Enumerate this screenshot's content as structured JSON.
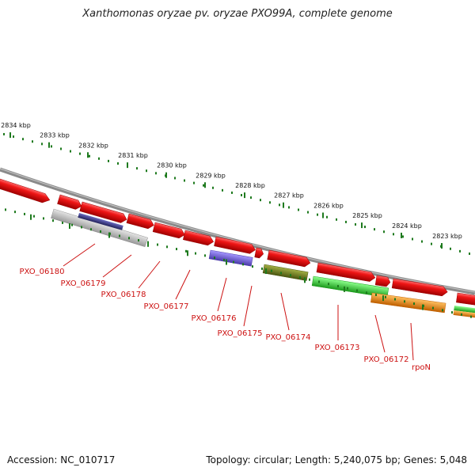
{
  "title": "Xanthomonas oryzae pv. oryzae PXO99A, complete genome",
  "footer": {
    "accession": "Accession: NC_010717",
    "summary": "Topology: circular; Length: 5,240,075 bp; Genes: 5,048"
  },
  "ruler": {
    "labels": [
      "2834 kbp",
      "2833 kbp",
      "2832 kbp",
      "2831 kbp",
      "2830 kbp",
      "2829 kbp",
      "2828 kbp",
      "2827 kbp",
      "2826 kbp",
      "2825 kbp",
      "2824 kbp",
      "2823 kbp"
    ]
  },
  "gene_labels": [
    "PXO_06180",
    "PXO_06179",
    "PXO_06178",
    "PXO_06177",
    "PXO_06176",
    "PXO_06175",
    "PXO_06174",
    "PXO_06173",
    "PXO_06172",
    "rpoN"
  ],
  "colors": {
    "backbone": "#808080",
    "ruler_tick": "#1e7a1e",
    "label": "#cc1111",
    "cds_forward": "#e01010",
    "pseudo": "#b8b8b8",
    "feature_navy": "#3a3a8a",
    "feature_violet": "#7060d0",
    "feature_olive": "#6f7d20",
    "feature_green": "#3fcf3f",
    "feature_orange": "#f08a10"
  }
}
